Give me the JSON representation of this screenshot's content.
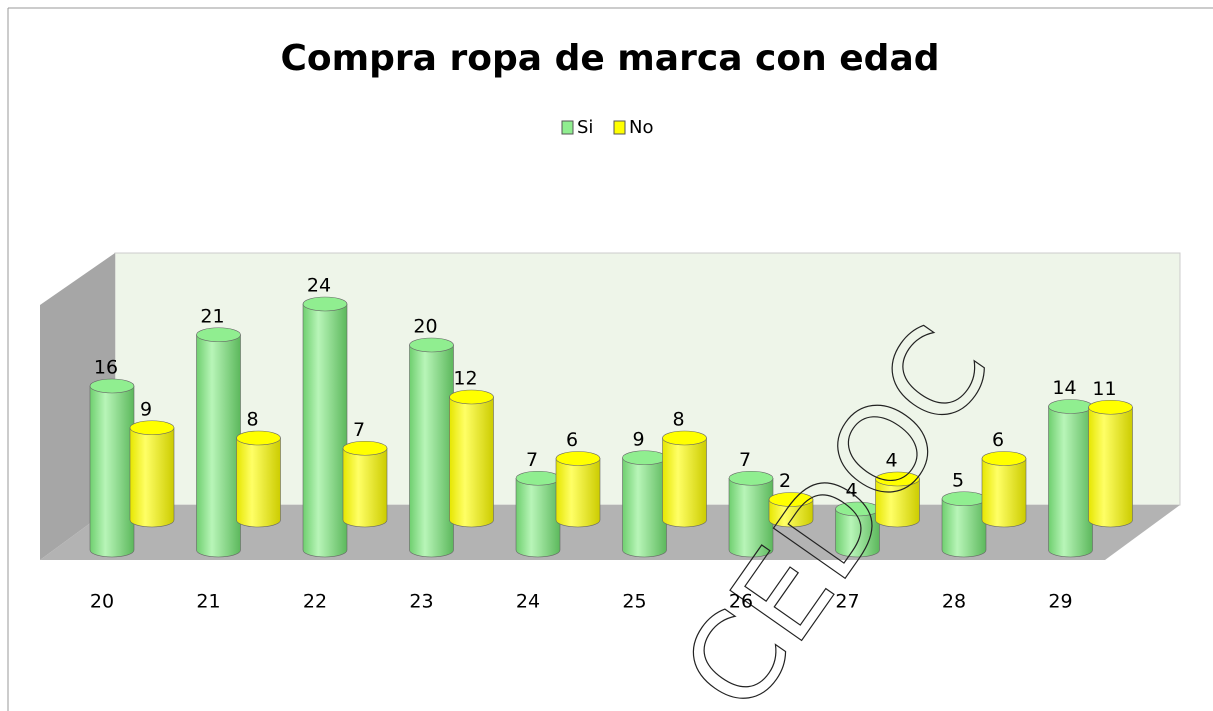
{
  "chart_data": {
    "type": "bar",
    "title": "Compra ropa de marca con edad",
    "categories": [
      "20",
      "21",
      "22",
      "23",
      "24",
      "25",
      "26",
      "27",
      "28",
      "29"
    ],
    "series": [
      {
        "name": "Si",
        "color": "#90ee90",
        "values": [
          16,
          21,
          24,
          20,
          7,
          9,
          7,
          4,
          5,
          14
        ]
      },
      {
        "name": "No",
        "color": "#ffff00",
        "values": [
          9,
          8,
          7,
          12,
          6,
          8,
          2,
          4,
          6,
          11
        ]
      }
    ],
    "legend": "top",
    "watermark": "CEDOC"
  }
}
